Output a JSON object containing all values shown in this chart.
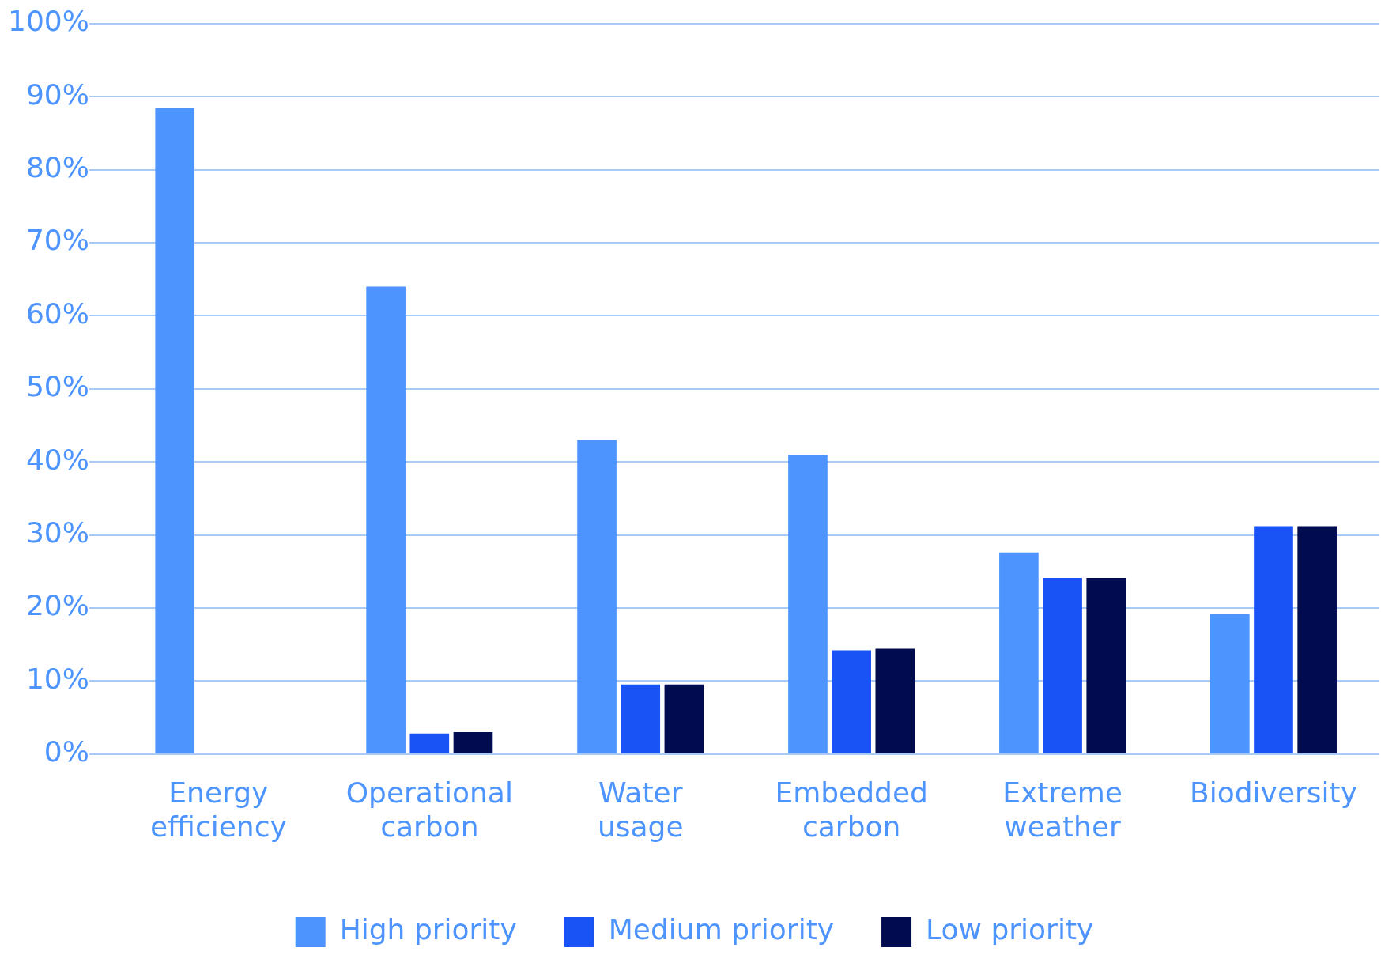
{
  "chart_data": {
    "type": "bar",
    "categories": [
      "Energy efficiency",
      "Operational carbon",
      "Water usage",
      "Embedded carbon",
      "Extreme weather",
      "Biodiversity"
    ],
    "series": [
      {
        "name": "High priority",
        "color": "#4d94ff",
        "values": [
          88.5,
          64,
          43,
          41,
          27.6,
          19.2
        ]
      },
      {
        "name": "Medium priority",
        "color": "#1a53f5",
        "values": [
          0,
          2.8,
          9.5,
          14.2,
          24.1,
          31.2
        ]
      },
      {
        "name": "Low priority",
        "color": "#000b50",
        "values": [
          0,
          3,
          9.5,
          14.4,
          24.1,
          31.2
        ]
      }
    ],
    "ylim": [
      0,
      100
    ],
    "yticks": [
      {
        "value": 0,
        "label": "0%"
      },
      {
        "value": 10,
        "label": "10%"
      },
      {
        "value": 20,
        "label": "20%"
      },
      {
        "value": 30,
        "label": "30%"
      },
      {
        "value": 40,
        "label": "40%"
      },
      {
        "value": 50,
        "label": "50%"
      },
      {
        "value": 60,
        "label": "60%"
      },
      {
        "value": 70,
        "label": "70%"
      },
      {
        "value": 80,
        "label": "80%"
      },
      {
        "value": 90,
        "label": "90%"
      },
      {
        "value": 100,
        "label": "100%"
      }
    ],
    "grid": "y",
    "legend": "bottom"
  }
}
